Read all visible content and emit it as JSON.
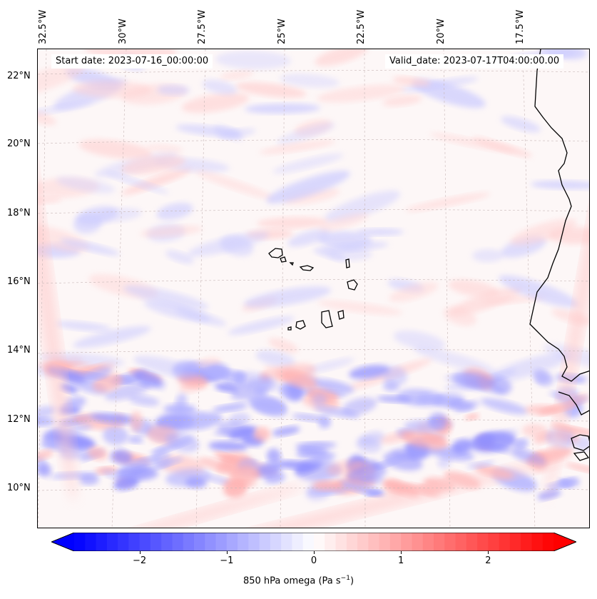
{
  "header": {
    "start_date": "Start date: 2023-07-16_00:00:00",
    "valid_date": "Valid_date: 2023-07-17T04:00:00.00"
  },
  "axes": {
    "lon_labels": [
      "32.5°W",
      "30°W",
      "27.5°W",
      "25°W",
      "22.5°W",
      "20°W",
      "17.5°W"
    ],
    "lat_labels": [
      "22°N",
      "20°N",
      "18°N",
      "16°N",
      "14°N",
      "12°N",
      "10°N"
    ]
  },
  "colorbar": {
    "label": "850 hPa omega (Pa s",
    "label_sup": "−1",
    "label_end": ")",
    "ticks": [
      "−2",
      "−1",
      "0",
      "1",
      "2"
    ],
    "range": [
      -2.75,
      2.75
    ],
    "colormap": "bwr",
    "low_color": "#0000ff",
    "mid_color": "#ffffff",
    "high_color": "#ff0000"
  },
  "map": {
    "variable": "850 hPa omega",
    "gridlines": true,
    "coastlines": true,
    "features": [
      "Cape Verde islands",
      "West African coastline"
    ]
  }
}
